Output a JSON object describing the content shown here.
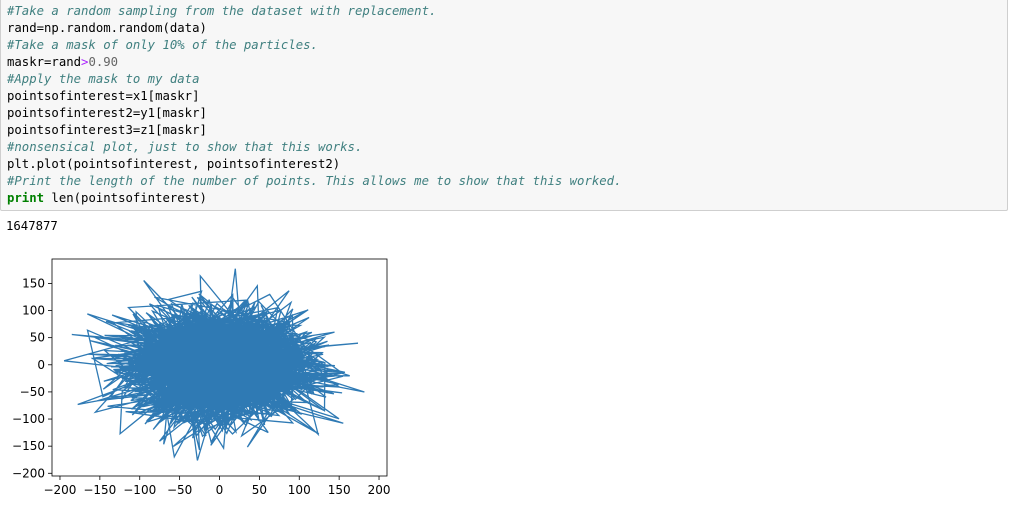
{
  "code_cell": {
    "lines": [
      {
        "type": "comment",
        "text": "#Take a random sampling from the dataset with replacement."
      },
      {
        "type": "code",
        "text": "rand=np.random.random(data)"
      },
      {
        "type": "comment",
        "text": "#Take a mask of only 10% of the particles."
      },
      {
        "type": "mask",
        "prefix": "maskr=rand",
        "op": ">",
        "num": "0.90"
      },
      {
        "type": "comment",
        "text": "#Apply the mask to my data"
      },
      {
        "type": "code",
        "text": "pointsofinterest=x1[maskr]"
      },
      {
        "type": "code",
        "text": "pointsofinterest2=y1[maskr]"
      },
      {
        "type": "code",
        "text": "pointsofinterest3=z1[maskr]"
      },
      {
        "type": "comment",
        "text": "#nonsensical plot, just to show that this works."
      },
      {
        "type": "code",
        "text": "plt.plot(pointsofinterest, pointsofinterest2)"
      },
      {
        "type": "comment",
        "text": "#Print the length of the number of points. This allows me to show that this worked."
      },
      {
        "type": "print",
        "keyword": "print",
        "rest": " len(pointsofinterest)"
      }
    ]
  },
  "output": {
    "text": "1647877"
  },
  "chart_data": {
    "type": "line",
    "description_values": "dense tangle of line segments joining ~1.6M points roughly normally distributed around origin",
    "x_ticks": [
      -200,
      -150,
      -100,
      -50,
      0,
      50,
      100,
      150,
      200
    ],
    "y_ticks": [
      150,
      100,
      50,
      0,
      -50,
      -100,
      -150,
      -200
    ],
    "xlim": [
      -210,
      210
    ],
    "ylim": [
      -205,
      195
    ],
    "spread": {
      "x_std": 55,
      "y_std": 50,
      "x_max": 195,
      "y_max": 178
    },
    "color": "#2f7ab4",
    "grid": false,
    "title": "",
    "xlabel": "",
    "ylabel": ""
  }
}
